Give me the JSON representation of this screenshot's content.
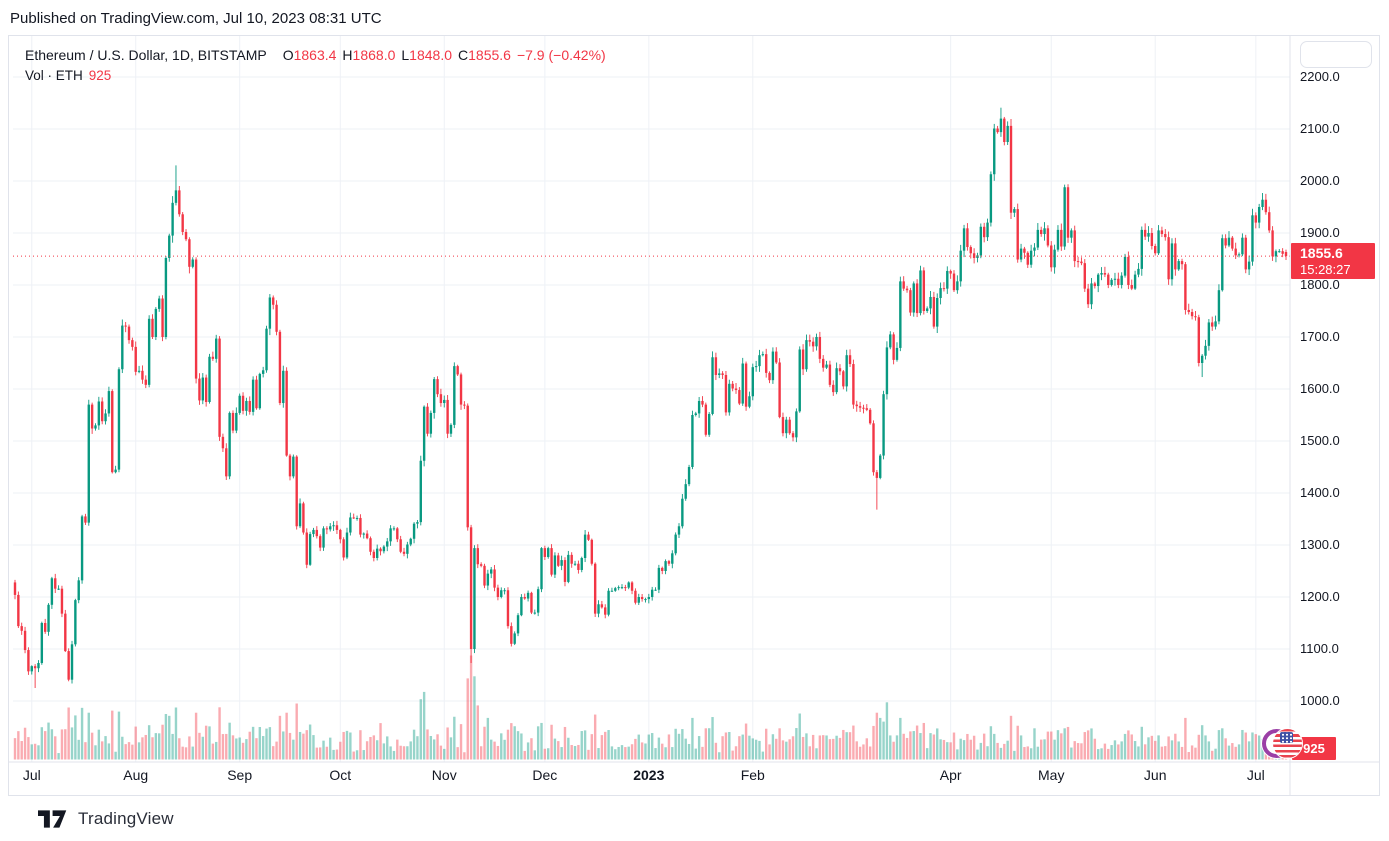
{
  "published_bar": {
    "text": "Published on TradingView.com, Jul 10, 2023 08:31 UTC"
  },
  "legend": {
    "symbol_title": "Ethereum / U.S. Dollar, 1D, BITSTAMP",
    "ohlc": {
      "o_label": "O",
      "o": "1863.4",
      "h_label": "H",
      "h": "1868.0",
      "l_label": "L",
      "l": "1848.0",
      "c_label": "C",
      "c": "1855.6",
      "change": "−7.9 (−0.42%)"
    },
    "volume_row": {
      "label": "Vol · ETH",
      "value": "925"
    }
  },
  "price_axis": {
    "price_label": {
      "price": "1855.6",
      "countdown": "15:28:27"
    },
    "volume_label": "925"
  },
  "time_axis": {
    "labels": [
      {
        "text": "Jul",
        "day": 5
      },
      {
        "text": "Aug",
        "day": 36
      },
      {
        "text": "Sep",
        "day": 67
      },
      {
        "text": "Oct",
        "day": 97
      },
      {
        "text": "Nov",
        "day": 128
      },
      {
        "text": "Dec",
        "day": 158
      },
      {
        "text": "2023",
        "day": 189,
        "bold": true
      },
      {
        "text": "Feb",
        "day": 220
      },
      {
        "text": "Apr",
        "day": 279
      },
      {
        "text": "May",
        "day": 309
      },
      {
        "text": "Jun",
        "day": 340
      },
      {
        "text": "Jul",
        "day": 370
      }
    ]
  },
  "footer": {
    "brand": "TradingView"
  },
  "colors": {
    "up": "#089981",
    "down": "#f23645",
    "accent_red": "#f23645",
    "grid": "#eef1f6",
    "border": "#e0e3eb",
    "text": "#131722",
    "volume_opacity": 0.42
  },
  "chart_data": {
    "type": "candlestick",
    "title": "Ethereum / U.S. Dollar, 1D, BITSTAMP",
    "timeframe": "1D",
    "exchange": "BITSTAMP",
    "date_range": {
      "start": "2022-06-26",
      "end": "2023-07-10"
    },
    "y_ticks": [
      2200,
      2100,
      2000,
      1900,
      1800,
      1700,
      1600,
      1500,
      1400,
      1300,
      1200,
      1100,
      1000,
      900
    ],
    "price_line": 1855.6,
    "last_volume": 925,
    "first_open": 1228,
    "last_bar": {
      "open": 1863.4,
      "high": 1868.0,
      "low": 1848.0,
      "close": 1855.6,
      "change": -7.9,
      "change_pct": -0.42
    },
    "daily_close": [
      1204,
      1144,
      1135,
      1098,
      1057,
      1067,
      1063,
      1073,
      1150,
      1133,
      1185,
      1236,
      1216,
      1216,
      1168,
      1096,
      1041,
      1109,
      1194,
      1232,
      1355,
      1343,
      1570,
      1524,
      1530,
      1576,
      1538,
      1553,
      1596,
      1440,
      1445,
      1638,
      1722,
      1720,
      1694,
      1681,
      1633,
      1635,
      1618,
      1608,
      1735,
      1700,
      1754,
      1774,
      1700,
      1852,
      1895,
      1958,
      1982,
      1936,
      1902,
      1888,
      1835,
      1849,
      1620,
      1578,
      1622,
      1575,
      1662,
      1658,
      1697,
      1508,
      1486,
      1432,
      1554,
      1520,
      1554,
      1587,
      1558,
      1577,
      1556,
      1618,
      1563,
      1629,
      1636,
      1716,
      1776,
      1762,
      1710,
      1573,
      1635,
      1472,
      1432,
      1470,
      1336,
      1380,
      1324,
      1262,
      1321,
      1329,
      1317,
      1295,
      1332,
      1330,
      1336,
      1338,
      1329,
      1311,
      1276,
      1324,
      1353,
      1352,
      1352,
      1320,
      1322,
      1313,
      1287,
      1275,
      1293,
      1288,
      1297,
      1307,
      1332,
      1332,
      1311,
      1287,
      1283,
      1301,
      1312,
      1341,
      1344,
      1462,
      1566,
      1514,
      1554,
      1619,
      1590,
      1573,
      1579,
      1514,
      1531,
      1644,
      1628,
      1570,
      1568,
      1334,
      1100,
      1294,
      1263,
      1260,
      1222,
      1245,
      1253,
      1218,
      1200,
      1213,
      1213,
      1144,
      1110,
      1130,
      1165,
      1200,
      1197,
      1208,
      1170,
      1170,
      1215,
      1294,
      1277,
      1294,
      1243,
      1280,
      1260,
      1271,
      1229,
      1281,
      1264,
      1264,
      1252,
      1275,
      1320,
      1310,
      1264,
      1168,
      1186,
      1180,
      1166,
      1212,
      1212,
      1217,
      1219,
      1219,
      1218,
      1228,
      1212,
      1189,
      1200,
      1196,
      1196,
      1200,
      1214,
      1214,
      1256,
      1250,
      1269,
      1264,
      1284,
      1320,
      1336,
      1389,
      1417,
      1450,
      1550,
      1553,
      1577,
      1570,
      1512,
      1552,
      1661,
      1627,
      1630,
      1627,
      1555,
      1610,
      1601,
      1598,
      1572,
      1649,
      1566,
      1586,
      1642,
      1644,
      1665,
      1667,
      1631,
      1617,
      1672,
      1651,
      1546,
      1515,
      1541,
      1515,
      1507,
      1557,
      1676,
      1638,
      1694,
      1691,
      1682,
      1700,
      1658,
      1641,
      1647,
      1608,
      1594,
      1640,
      1634,
      1605,
      1665,
      1648,
      1570,
      1567,
      1564,
      1563,
      1560,
      1534,
      1440,
      1429,
      1472,
      1590,
      1680,
      1705,
      1656,
      1679,
      1807,
      1793,
      1790,
      1747,
      1803,
      1746,
      1828,
      1750,
      1755,
      1777,
      1720,
      1775,
      1794,
      1793,
      1827,
      1822,
      1790,
      1807,
      1866,
      1909,
      1873,
      1861,
      1852,
      1857,
      1912,
      1892,
      1920,
      2013,
      2101,
      2094,
      2120,
      2075,
      2106,
      1939,
      1946,
      1849,
      1870,
      1862,
      1839,
      1866,
      1872,
      1906,
      1898,
      1909,
      1876,
      1834,
      1868,
      1906,
      1874,
      1988,
      1891,
      1905,
      1846,
      1845,
      1842,
      1793,
      1763,
      1803,
      1798,
      1820,
      1823,
      1820,
      1800,
      1810,
      1812,
      1800,
      1818,
      1854,
      1800,
      1793,
      1820,
      1831,
      1906,
      1893,
      1900,
      1875,
      1861,
      1905,
      1898,
      1892,
      1811,
      1880,
      1830,
      1846,
      1840,
      1752,
      1748,
      1740,
      1738,
      1650,
      1664,
      1683,
      1728,
      1720,
      1730,
      1790,
      1890,
      1876,
      1891,
      1870,
      1857,
      1859,
      1891,
      1830,
      1845,
      1934,
      1920,
      1950,
      1964,
      1940,
      1905,
      1855,
      1865,
      1865,
      1860,
      1855.6
    ],
    "wick_overrides": {
      "6": {
        "low": 1025
      },
      "48": {
        "high": 2030
      },
      "136": {
        "low": 1073
      },
      "257": {
        "low": 1368
      },
      "294": {
        "high": 2141
      },
      "354": {
        "low": 1623
      },
      "372": {
        "high": 1977
      }
    },
    "volume_spikes": {
      "16": 0.5,
      "22": 0.45,
      "46": 0.42,
      "48": 0.5,
      "54": 0.45,
      "79": 0.42,
      "81": 0.45,
      "109": 0.35,
      "121": 0.58,
      "122": 0.65,
      "135": 0.78,
      "136": 1.0,
      "137": 0.8,
      "138": 0.52,
      "141": 0.4,
      "148": 0.35,
      "149": 0.32,
      "170": 0.28,
      "202": 0.4,
      "206": 0.3,
      "228": 0.3,
      "257": 0.45,
      "258": 0.4,
      "260": 0.55,
      "264": 0.4,
      "291": 0.32,
      "297": 0.42,
      "304": 0.3,
      "313": 0.3,
      "320": 0.28,
      "349": 0.4,
      "354": 0.33,
      "360": 0.3,
      "369": 0.26,
      "375": 0.2
    }
  }
}
